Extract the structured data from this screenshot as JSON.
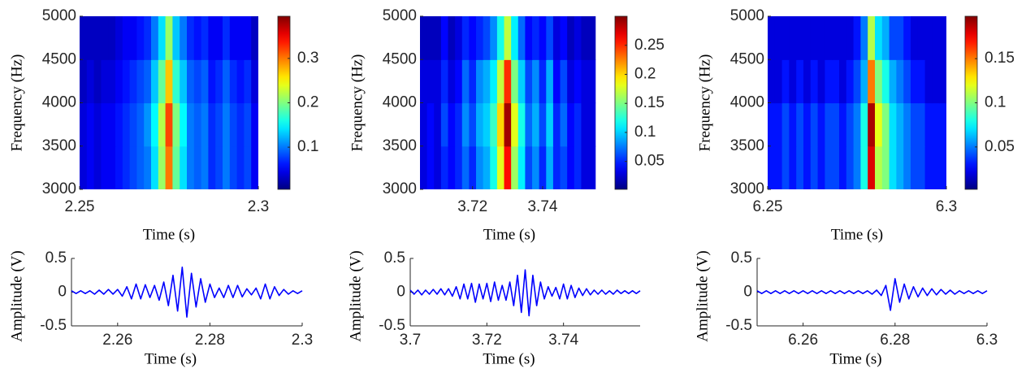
{
  "chart_data": [
    {
      "type": "heatmap",
      "xlabel": "Time (s)",
      "ylabel": "Frequency (Hz)",
      "colormap": "jet",
      "xlim": [
        2.25,
        2.3
      ],
      "xticks": [
        2.25,
        2.3
      ],
      "ylim": [
        3000,
        5000
      ],
      "yticks": [
        3000,
        3500,
        4000,
        4500,
        5000
      ],
      "clim": [
        0.005,
        0.395
      ],
      "cticks": [
        0.1,
        0.2,
        0.3
      ],
      "x": [
        2.251,
        2.253,
        2.255,
        2.257,
        2.259,
        2.261,
        2.263,
        2.265,
        2.267,
        2.269,
        2.271,
        2.273,
        2.275,
        2.277,
        2.279,
        2.281,
        2.283,
        2.285,
        2.287,
        2.289,
        2.291,
        2.293,
        2.295,
        2.297,
        2.299
      ],
      "y": [
        3250,
        3750,
        4250,
        4750
      ],
      "z": [
        [
          0.04,
          0.05,
          0.04,
          0.05,
          0.05,
          0.06,
          0.07,
          0.08,
          0.09,
          0.1,
          0.14,
          0.21,
          0.3,
          0.19,
          0.14,
          0.1,
          0.09,
          0.1,
          0.07,
          0.08,
          0.1,
          0.08,
          0.07,
          0.08,
          0.05
        ],
        [
          0.04,
          0.05,
          0.04,
          0.05,
          0.05,
          0.06,
          0.07,
          0.08,
          0.09,
          0.11,
          0.15,
          0.22,
          0.32,
          0.2,
          0.15,
          0.1,
          0.09,
          0.1,
          0.07,
          0.08,
          0.1,
          0.08,
          0.07,
          0.08,
          0.05
        ],
        [
          0.03,
          0.04,
          0.03,
          0.04,
          0.04,
          0.05,
          0.06,
          0.07,
          0.08,
          0.09,
          0.13,
          0.19,
          0.27,
          0.17,
          0.13,
          0.09,
          0.08,
          0.09,
          0.06,
          0.07,
          0.09,
          0.07,
          0.06,
          0.07,
          0.04
        ],
        [
          0.03,
          0.03,
          0.03,
          0.03,
          0.03,
          0.04,
          0.05,
          0.05,
          0.06,
          0.07,
          0.1,
          0.14,
          0.21,
          0.13,
          0.1,
          0.07,
          0.06,
          0.07,
          0.05,
          0.05,
          0.07,
          0.05,
          0.05,
          0.05,
          0.03
        ]
      ]
    },
    {
      "type": "heatmap",
      "xlabel": "Time (s)",
      "ylabel": "Frequency (Hz)",
      "colormap": "jet",
      "xlim": [
        3.705,
        3.756
      ],
      "xticks": [
        3.72,
        3.74
      ],
      "ylim": [
        3000,
        5000
      ],
      "yticks": [
        3000,
        3500,
        4000,
        4500,
        5000
      ],
      "clim": [
        0.002,
        0.3
      ],
      "cticks": [
        0.05,
        0.1,
        0.15,
        0.2,
        0.25
      ],
      "x": [
        3.706,
        3.708,
        3.71,
        3.712,
        3.714,
        3.716,
        3.718,
        3.72,
        3.722,
        3.724,
        3.726,
        3.728,
        3.73,
        3.732,
        3.734,
        3.736,
        3.738,
        3.74,
        3.742,
        3.744,
        3.746,
        3.748,
        3.75,
        3.752,
        3.754
      ],
      "y": [
        3250,
        3750,
        4250,
        4750
      ],
      "z": [
        [
          0.03,
          0.04,
          0.03,
          0.05,
          0.04,
          0.05,
          0.07,
          0.05,
          0.08,
          0.09,
          0.12,
          0.18,
          0.26,
          0.16,
          0.11,
          0.06,
          0.08,
          0.05,
          0.09,
          0.05,
          0.06,
          0.04,
          0.05,
          0.03,
          0.03
        ],
        [
          0.03,
          0.04,
          0.03,
          0.06,
          0.04,
          0.05,
          0.08,
          0.06,
          0.09,
          0.1,
          0.13,
          0.2,
          0.29,
          0.18,
          0.12,
          0.07,
          0.09,
          0.06,
          0.1,
          0.05,
          0.07,
          0.04,
          0.05,
          0.03,
          0.03
        ],
        [
          0.03,
          0.03,
          0.03,
          0.05,
          0.03,
          0.04,
          0.07,
          0.05,
          0.08,
          0.09,
          0.11,
          0.17,
          0.25,
          0.15,
          0.1,
          0.06,
          0.08,
          0.05,
          0.09,
          0.04,
          0.06,
          0.03,
          0.04,
          0.03,
          0.03
        ],
        [
          0.02,
          0.02,
          0.02,
          0.04,
          0.02,
          0.03,
          0.05,
          0.04,
          0.05,
          0.06,
          0.08,
          0.12,
          0.17,
          0.11,
          0.07,
          0.04,
          0.05,
          0.04,
          0.06,
          0.03,
          0.04,
          0.02,
          0.03,
          0.02,
          0.02
        ]
      ]
    },
    {
      "type": "heatmap",
      "xlabel": "Time (s)",
      "ylabel": "Frequency (Hz)",
      "colormap": "jet",
      "xlim": [
        6.25,
        6.3
      ],
      "xticks": [
        6.25,
        6.3
      ],
      "ylim": [
        3000,
        5000
      ],
      "yticks": [
        3000,
        3500,
        4000,
        4500,
        5000
      ],
      "clim": [
        0.002,
        0.198
      ],
      "cticks": [
        0.05,
        0.1,
        0.15
      ],
      "x": [
        6.251,
        6.253,
        6.255,
        6.257,
        6.259,
        6.261,
        6.263,
        6.265,
        6.267,
        6.269,
        6.271,
        6.273,
        6.275,
        6.277,
        6.279,
        6.281,
        6.283,
        6.285,
        6.287,
        6.289,
        6.291,
        6.293,
        6.295,
        6.297,
        6.299
      ],
      "y": [
        3250,
        3750,
        4250,
        4750
      ],
      "z": [
        [
          0.03,
          0.03,
          0.04,
          0.03,
          0.04,
          0.03,
          0.04,
          0.03,
          0.04,
          0.04,
          0.03,
          0.04,
          0.05,
          0.08,
          0.18,
          0.11,
          0.1,
          0.07,
          0.06,
          0.05,
          0.04,
          0.04,
          0.03,
          0.03,
          0.03
        ],
        [
          0.03,
          0.03,
          0.04,
          0.03,
          0.04,
          0.03,
          0.04,
          0.03,
          0.04,
          0.04,
          0.03,
          0.04,
          0.05,
          0.08,
          0.19,
          0.12,
          0.1,
          0.07,
          0.06,
          0.05,
          0.04,
          0.04,
          0.03,
          0.03,
          0.03
        ],
        [
          0.02,
          0.02,
          0.03,
          0.02,
          0.03,
          0.02,
          0.03,
          0.02,
          0.03,
          0.03,
          0.02,
          0.03,
          0.04,
          0.06,
          0.15,
          0.1,
          0.08,
          0.06,
          0.05,
          0.04,
          0.03,
          0.03,
          0.02,
          0.02,
          0.02
        ],
        [
          0.02,
          0.02,
          0.02,
          0.02,
          0.02,
          0.02,
          0.02,
          0.02,
          0.02,
          0.02,
          0.02,
          0.02,
          0.03,
          0.05,
          0.11,
          0.07,
          0.06,
          0.04,
          0.04,
          0.03,
          0.02,
          0.02,
          0.02,
          0.02,
          0.02
        ]
      ]
    },
    {
      "type": "line",
      "xlabel": "Time (s)",
      "ylabel": "Amplitude (V)",
      "color": "#0000ff",
      "xlim": [
        2.25,
        2.3
      ],
      "xticks": [
        2.26,
        2.28,
        2.3
      ],
      "ylim": [
        -0.5,
        0.5
      ],
      "yticks": [
        -0.5,
        0,
        0.5
      ],
      "x": [
        2.25,
        2.251,
        2.252,
        2.253,
        2.254,
        2.255,
        2.256,
        2.257,
        2.258,
        2.259,
        2.26,
        2.261,
        2.262,
        2.263,
        2.264,
        2.265,
        2.266,
        2.267,
        2.268,
        2.269,
        2.27,
        2.271,
        2.272,
        2.273,
        2.274,
        2.275,
        2.276,
        2.277,
        2.278,
        2.279,
        2.28,
        2.281,
        2.282,
        2.283,
        2.284,
        2.285,
        2.286,
        2.287,
        2.288,
        2.289,
        2.29,
        2.291,
        2.292,
        2.293,
        2.294,
        2.295,
        2.296,
        2.297,
        2.298,
        2.299,
        2.3
      ],
      "values": [
        0.02,
        -0.02,
        0.02,
        -0.02,
        0.02,
        -0.03,
        0.03,
        -0.03,
        0.04,
        -0.03,
        0.04,
        -0.06,
        0.08,
        -0.1,
        0.12,
        -0.1,
        0.11,
        -0.08,
        0.1,
        -0.12,
        0.15,
        -0.2,
        0.25,
        -0.28,
        0.37,
        -0.37,
        0.28,
        -0.22,
        0.2,
        -0.15,
        0.12,
        -0.08,
        0.06,
        -0.08,
        0.1,
        -0.08,
        0.1,
        -0.07,
        0.05,
        -0.04,
        0.06,
        -0.1,
        0.12,
        -0.1,
        0.08,
        -0.05,
        0.04,
        -0.03,
        0.02,
        -0.02,
        0.02
      ]
    },
    {
      "type": "line",
      "xlabel": "Time (s)",
      "ylabel": "Amplitude (V)",
      "color": "#0000ff",
      "xlim": [
        3.7,
        3.76
      ],
      "xticks": [
        3.7,
        3.72,
        3.74
      ],
      "ylim": [
        -0.5,
        0.5
      ],
      "yticks": [
        -0.5,
        0,
        0.5
      ],
      "x": [
        3.7,
        3.701,
        3.702,
        3.703,
        3.704,
        3.705,
        3.706,
        3.707,
        3.708,
        3.709,
        3.71,
        3.711,
        3.712,
        3.713,
        3.714,
        3.715,
        3.716,
        3.717,
        3.718,
        3.719,
        3.72,
        3.721,
        3.722,
        3.723,
        3.724,
        3.725,
        3.726,
        3.727,
        3.728,
        3.729,
        3.73,
        3.731,
        3.732,
        3.733,
        3.734,
        3.735,
        3.736,
        3.737,
        3.738,
        3.739,
        3.74,
        3.741,
        3.742,
        3.743,
        3.744,
        3.745,
        3.746,
        3.747,
        3.748,
        3.749,
        3.75,
        3.751,
        3.752,
        3.753,
        3.754,
        3.755,
        3.756,
        3.757,
        3.758,
        3.759,
        3.76
      ],
      "values": [
        0.03,
        -0.03,
        0.03,
        -0.04,
        0.03,
        -0.03,
        0.04,
        -0.03,
        0.05,
        -0.04,
        0.05,
        -0.06,
        0.08,
        -0.1,
        0.12,
        -0.1,
        0.13,
        -0.15,
        0.12,
        -0.1,
        0.13,
        -0.14,
        0.15,
        -0.12,
        0.1,
        -0.12,
        0.15,
        -0.2,
        0.25,
        -0.3,
        0.33,
        -0.35,
        0.25,
        -0.2,
        0.15,
        -0.1,
        0.08,
        -0.06,
        0.07,
        -0.1,
        0.12,
        -0.1,
        0.1,
        -0.08,
        0.06,
        -0.05,
        0.05,
        -0.04,
        0.03,
        -0.03,
        0.03,
        -0.03,
        0.02,
        -0.03,
        0.03,
        -0.02,
        0.02,
        -0.02,
        0.02,
        -0.02,
        0.02
      ]
    },
    {
      "type": "line",
      "xlabel": "Time (s)",
      "ylabel": "Amplitude (V)",
      "color": "#0000ff",
      "xlim": [
        6.25,
        6.3
      ],
      "xticks": [
        6.26,
        6.28,
        6.3
      ],
      "ylim": [
        -0.5,
        0.5
      ],
      "yticks": [
        -0.5,
        0,
        0.5
      ],
      "x": [
        6.25,
        6.251,
        6.252,
        6.253,
        6.254,
        6.255,
        6.256,
        6.257,
        6.258,
        6.259,
        6.26,
        6.261,
        6.262,
        6.263,
        6.264,
        6.265,
        6.266,
        6.267,
        6.268,
        6.269,
        6.27,
        6.271,
        6.272,
        6.273,
        6.274,
        6.275,
        6.276,
        6.277,
        6.278,
        6.279,
        6.28,
        6.281,
        6.282,
        6.283,
        6.284,
        6.285,
        6.286,
        6.287,
        6.288,
        6.289,
        6.29,
        6.291,
        6.292,
        6.293,
        6.294,
        6.295,
        6.296,
        6.297,
        6.298,
        6.299,
        6.3
      ],
      "values": [
        0.02,
        -0.02,
        0.02,
        -0.02,
        0.02,
        -0.02,
        0.02,
        -0.02,
        0.02,
        -0.02,
        0.02,
        -0.02,
        0.02,
        -0.02,
        0.02,
        -0.02,
        0.02,
        -0.02,
        0.02,
        -0.02,
        0.02,
        -0.02,
        0.02,
        -0.02,
        0.02,
        -0.03,
        0.03,
        -0.05,
        0.1,
        -0.27,
        0.2,
        -0.15,
        0.12,
        -0.1,
        0.08,
        -0.07,
        0.06,
        -0.05,
        0.05,
        -0.04,
        0.04,
        -0.03,
        0.03,
        -0.03,
        0.02,
        -0.02,
        0.02,
        -0.02,
        0.02,
        -0.02,
        0.02
      ]
    }
  ]
}
